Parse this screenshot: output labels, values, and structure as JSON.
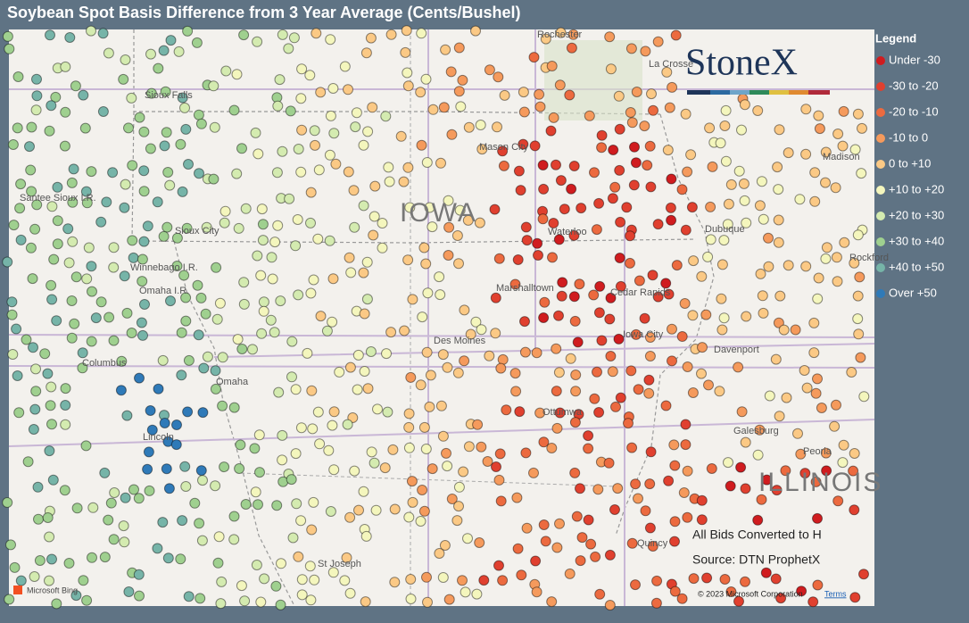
{
  "header": {
    "title": "Soybean Spot Basis Difference from 3 Year Average (Cents/Bushel)"
  },
  "legend": {
    "title": "Legend",
    "items": [
      {
        "label": "Under -30",
        "color": "#d01c1f"
      },
      {
        "label": "-30 to -20",
        "color": "#e0402f"
      },
      {
        "label": "-20 to -10",
        "color": "#ec6a3f"
      },
      {
        "label": "-10 to 0",
        "color": "#f59a5c"
      },
      {
        "label": "0 to +10",
        "color": "#fbc985"
      },
      {
        "label": "+10 to +20",
        "color": "#f4f6bd"
      },
      {
        "label": "+20 to +30",
        "color": "#d4ebb0"
      },
      {
        "label": "+30 to +40",
        "color": "#9fd08f"
      },
      {
        "label": "+40 to +50",
        "color": "#76b4a8"
      },
      {
        "label": "Over +50",
        "color": "#2f7ab8"
      }
    ]
  },
  "map": {
    "places": [
      "Rochester",
      "La Crosse",
      "Sioux Falls",
      "Mason City",
      "Madison",
      "Santee Sioux I.R.",
      "Sioux City",
      "IOWA",
      "Waterloo",
      "Dubuque",
      "Winnebago I.R.",
      "Omaha I.R.",
      "Marshalltown",
      "Cedar Rapids",
      "Rockford",
      "Des Moines",
      "Iowa City",
      "Davenport",
      "Columbus",
      "Omaha",
      "Ottumwa",
      "Galesburg",
      "Peoria",
      "Lincoln",
      "ILLINOIS",
      "Quincy",
      "St Joseph"
    ],
    "logo": "StoneX",
    "notes": [
      "All Bids Converted to H",
      "Source: DTN ProphetX"
    ],
    "attribution": [
      "Microsoft Bing",
      "© 2023 Microsoft Corporation",
      "Terms"
    ]
  }
}
